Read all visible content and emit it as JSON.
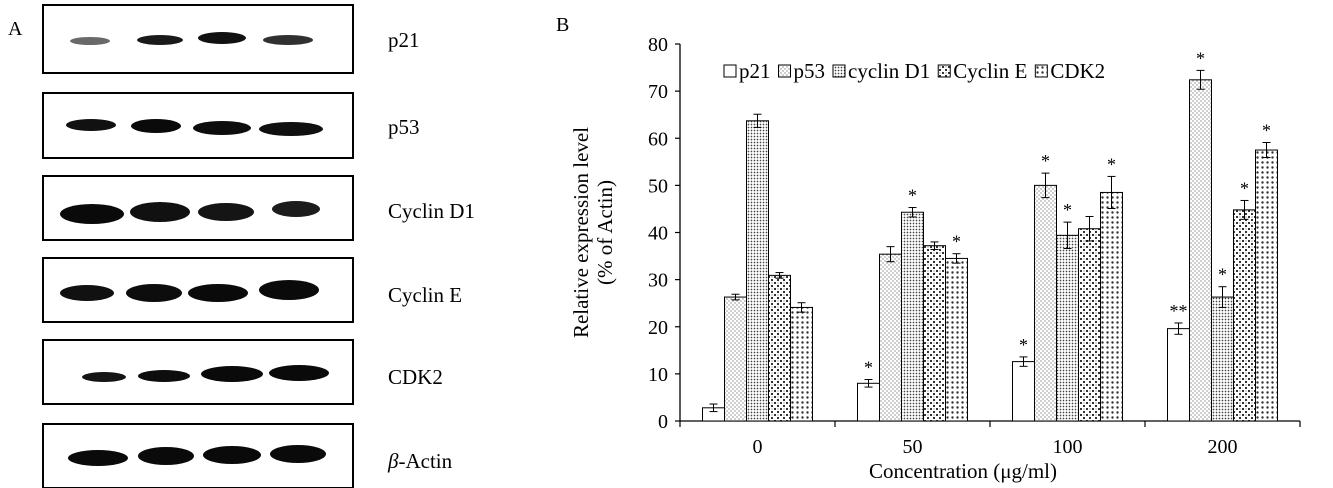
{
  "panel_a": {
    "letter": "A",
    "blots": [
      {
        "label": "p21"
      },
      {
        "label": "p53"
      },
      {
        "label": "Cyclin D1"
      },
      {
        "label": "Cyclin E"
      },
      {
        "label": "CDK2"
      },
      {
        "label_prefix": "β",
        "label_suffix": "-Actin"
      }
    ]
  },
  "panel_b": {
    "letter": "B"
  },
  "chart_data": {
    "type": "bar",
    "xlabel": "Concentration (μg/ml)",
    "ylabel": [
      "Relative expression level",
      "(% of Actin)"
    ],
    "ylim": [
      0,
      80
    ],
    "yticks": [
      "0",
      "10",
      "20",
      "30",
      "40",
      "50",
      "60",
      "70",
      "80"
    ],
    "categories": [
      "0",
      "50",
      "100",
      "200"
    ],
    "legend_position": "top",
    "series": [
      {
        "name": "p21",
        "pattern": "blank",
        "values": [
          2.8,
          8.0,
          12.6,
          19.6
        ],
        "errors": [
          0.8,
          0.8,
          1.0,
          1.2
        ],
        "marks": [
          "",
          "*",
          "*",
          "**"
        ]
      },
      {
        "name": "p53",
        "pattern": "fine-dots",
        "values": [
          26.3,
          35.4,
          50.0,
          72.4
        ],
        "errors": [
          0.6,
          1.6,
          2.6,
          2.0
        ],
        "marks": [
          "",
          "",
          "*",
          "*"
        ]
      },
      {
        "name": "cyclin D1",
        "pattern": "dense-dots",
        "values": [
          63.7,
          44.3,
          39.4,
          26.3
        ],
        "errors": [
          1.4,
          1.0,
          2.8,
          2.2
        ],
        "marks": [
          "",
          "*",
          "*",
          "*"
        ]
      },
      {
        "name": "Cyclin E",
        "pattern": "checker",
        "values": [
          30.9,
          37.2,
          40.8,
          44.8
        ],
        "errors": [
          0.6,
          0.8,
          2.6,
          2.0
        ],
        "marks": [
          "",
          "",
          "",
          "*"
        ]
      },
      {
        "name": "CDK2",
        "pattern": "large-dots",
        "values": [
          24.1,
          34.5,
          48.5,
          57.5
        ],
        "errors": [
          1.0,
          1.0,
          3.4,
          1.6
        ],
        "marks": [
          "",
          "*",
          "*",
          "*"
        ]
      }
    ]
  }
}
